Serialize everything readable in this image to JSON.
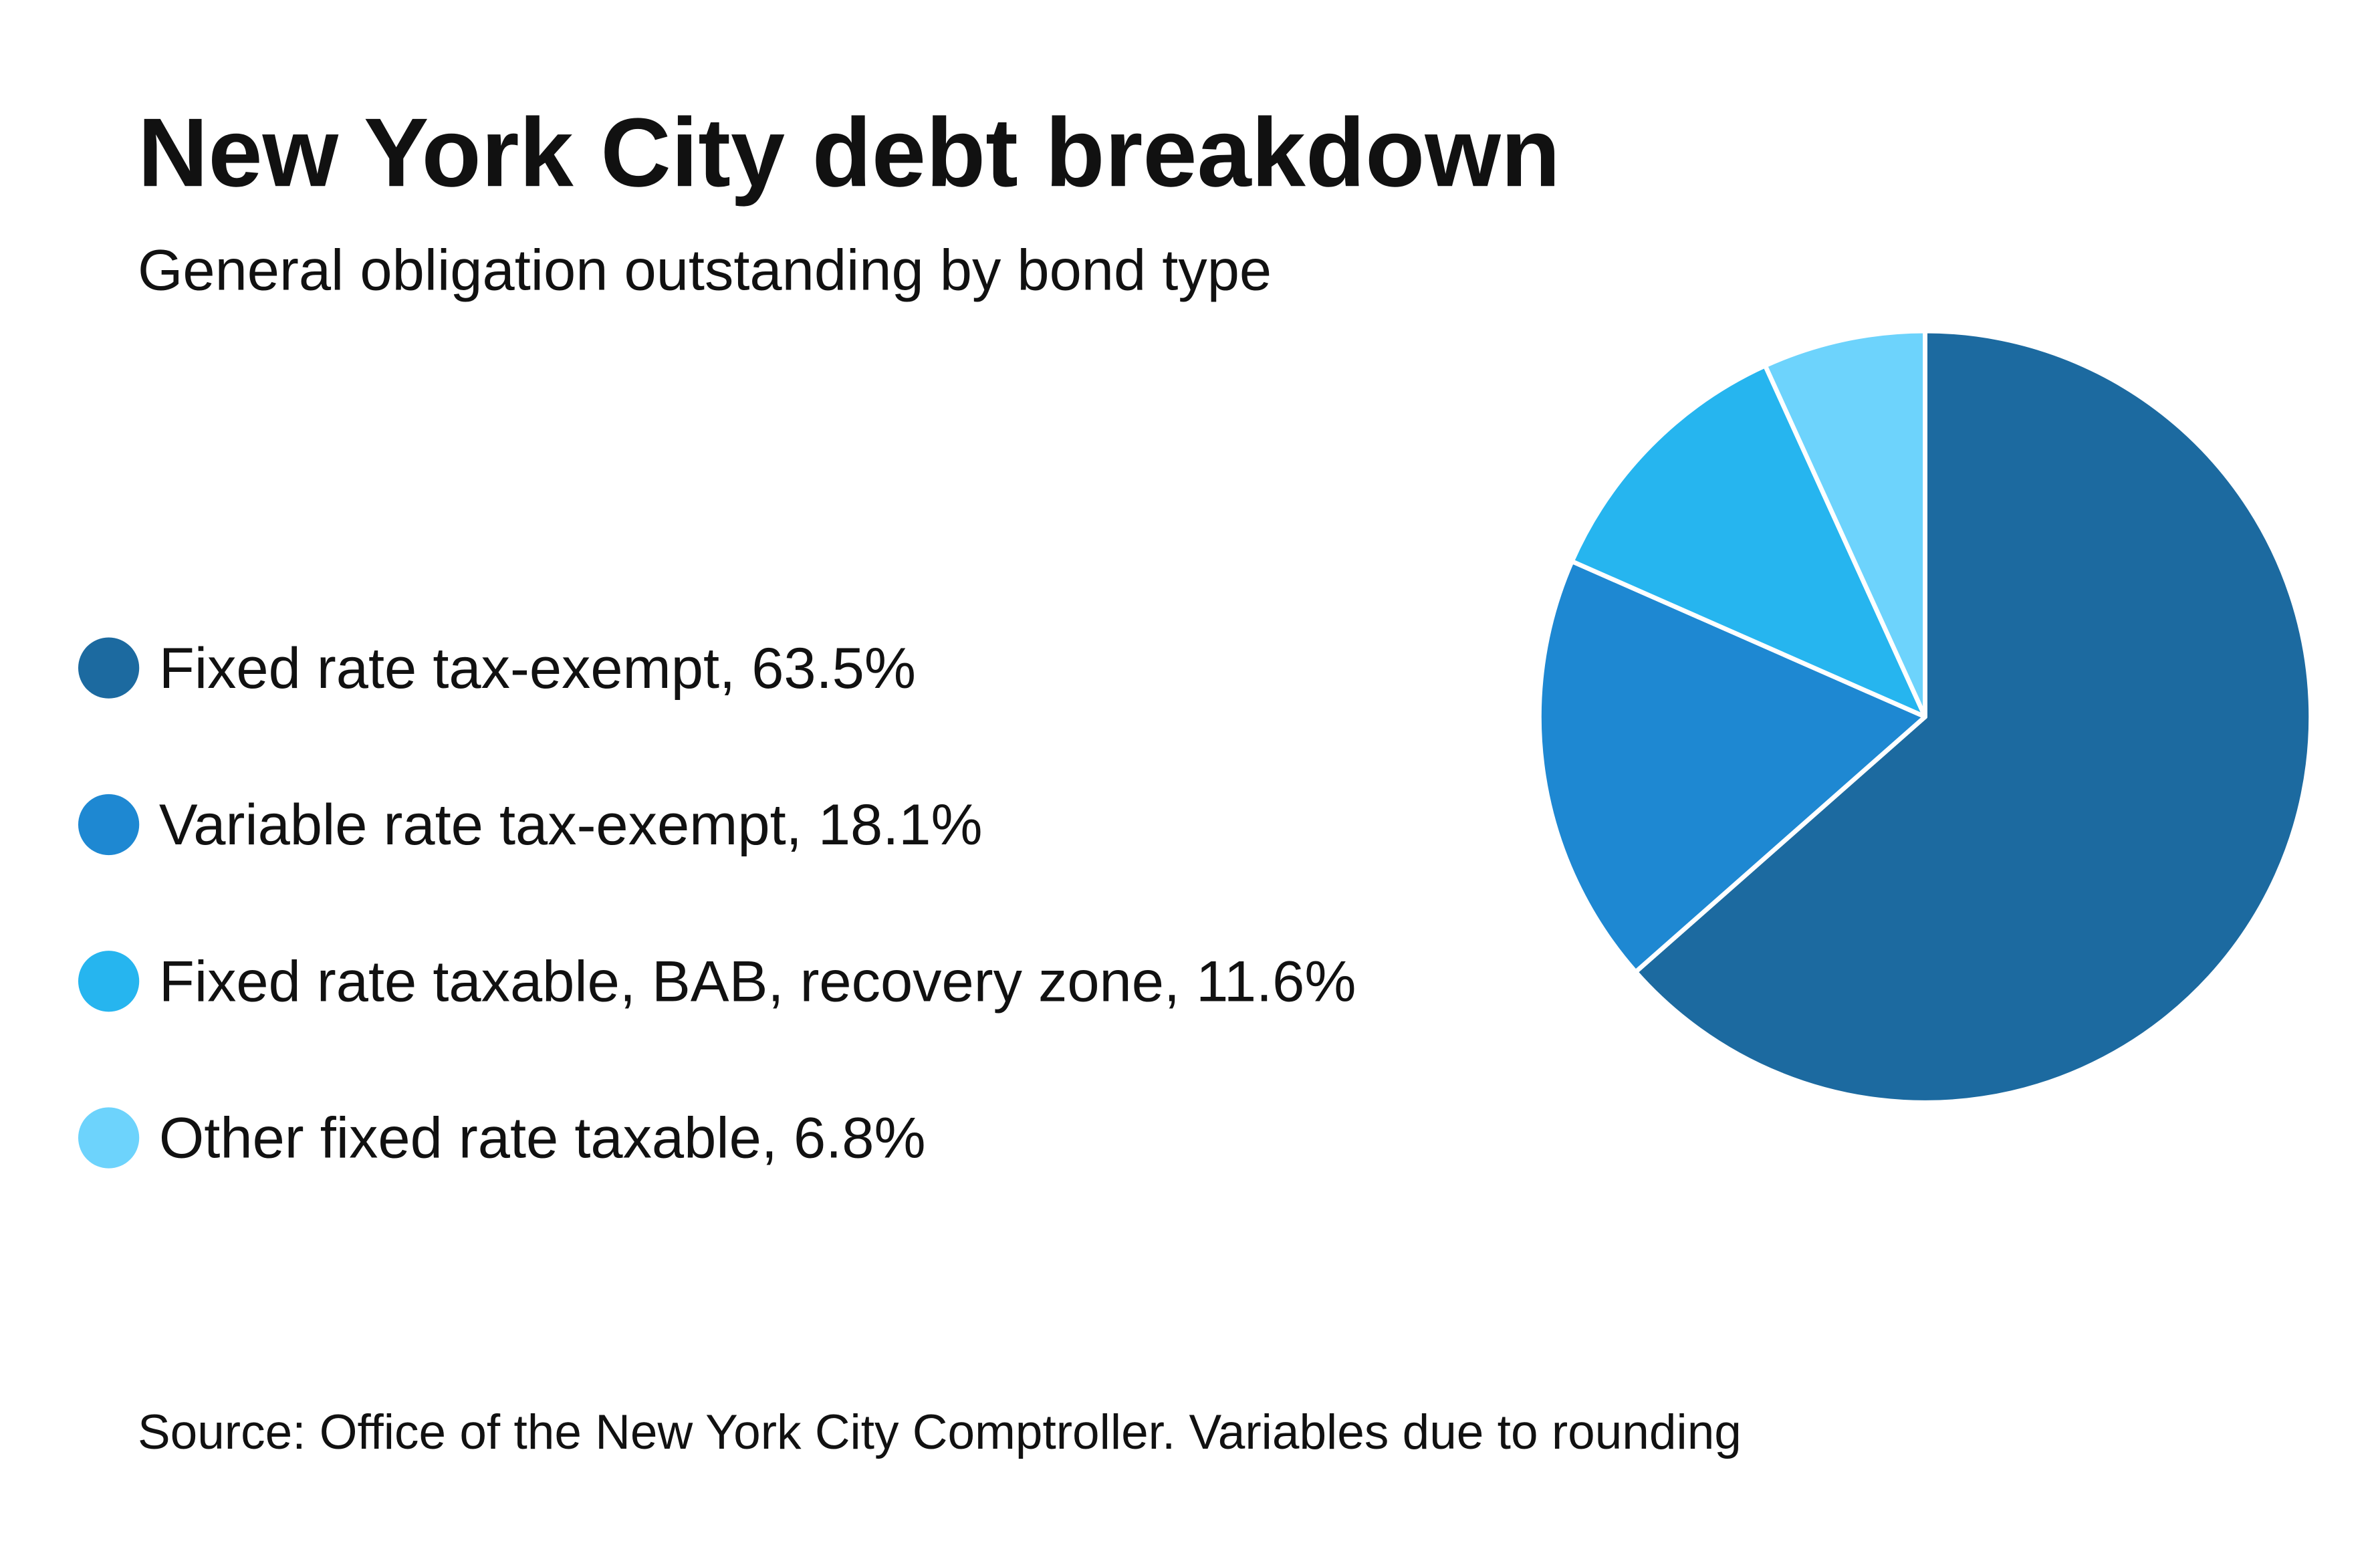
{
  "chart_data": {
    "type": "pie",
    "title": "New York City debt breakdown",
    "subtitle": "General obligation outstanding by bond type",
    "categories": [
      "Fixed rate tax-exempt, 63.5%",
      "Variable rate tax-exempt, 18.1%",
      "Fixed rate taxable, BAB, recovery zone, 11.6%",
      "Other fixed rate taxable, 6.8%"
    ],
    "values": [
      63.5,
      18.1,
      11.6,
      6.8
    ],
    "colors": [
      "#1c6aa0",
      "#1e88d2",
      "#26b5ef",
      "#6dd3fc"
    ],
    "source": "Source: Office of the New York City Comptroller. Variables due to rounding"
  }
}
